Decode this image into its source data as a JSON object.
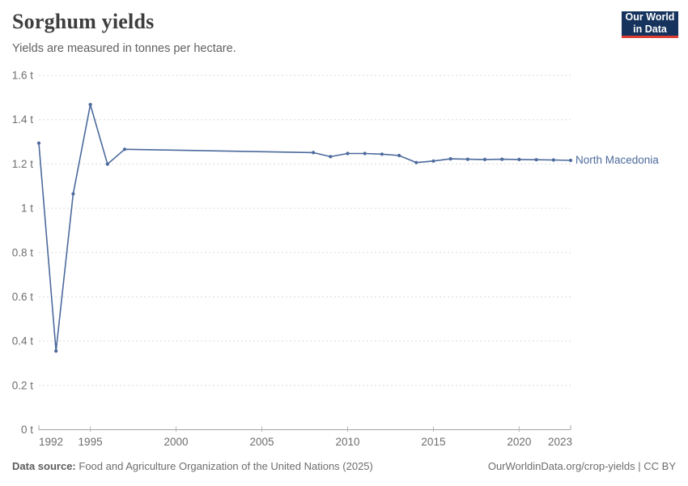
{
  "header": {
    "title": "Sorghum yields",
    "subtitle": "Yields are measured in tonnes per hectare.",
    "logo": {
      "line1": "Our World",
      "line2": "in Data",
      "bg_color": "#15335d",
      "accent_color": "#dc3e32"
    }
  },
  "chart_data": {
    "type": "line",
    "title": "Sorghum yields",
    "ylabel": "tonnes per hectare",
    "unit": "t",
    "xlim": [
      1992,
      2023
    ],
    "ylim": [
      0,
      1.6
    ],
    "grid": "horizontal-dashed",
    "legend_position": "end-of-line-label",
    "x_ticks": [
      1992,
      1995,
      2000,
      2005,
      2010,
      2015,
      2020,
      2023
    ],
    "y_ticks": [
      {
        "v": 0,
        "label": "0 t"
      },
      {
        "v": 0.2,
        "label": "0.2 t"
      },
      {
        "v": 0.4,
        "label": "0.4 t"
      },
      {
        "v": 0.6,
        "label": "0.6 t"
      },
      {
        "v": 0.8,
        "label": "0.8 t"
      },
      {
        "v": 1,
        "label": "1 t"
      },
      {
        "v": 1.2,
        "label": "1.2 t"
      },
      {
        "v": 1.4,
        "label": "1.4 t"
      },
      {
        "v": 1.6,
        "label": "1.6 t"
      }
    ],
    "series": [
      {
        "name": "North Macedonia",
        "color": "#4c6a9c",
        "points": [
          [
            1992,
            1.294
          ],
          [
            1993,
            0.355
          ],
          [
            1994,
            1.065
          ],
          [
            1995,
            1.468
          ],
          [
            1996,
            1.199
          ],
          [
            1997,
            1.266
          ],
          [
            2008,
            1.251
          ],
          [
            2009,
            1.233
          ],
          [
            2010,
            1.247
          ],
          [
            2011,
            1.247
          ],
          [
            2012,
            1.244
          ],
          [
            2013,
            1.238
          ],
          [
            2014,
            1.206
          ],
          [
            2015,
            1.213
          ],
          [
            2016,
            1.223
          ],
          [
            2017,
            1.221
          ],
          [
            2018,
            1.22
          ],
          [
            2019,
            1.221
          ],
          [
            2020,
            1.22
          ],
          [
            2021,
            1.219
          ],
          [
            2022,
            1.218
          ],
          [
            2023,
            1.216
          ]
        ]
      }
    ]
  },
  "footer": {
    "source_label": "Data source:",
    "source_text": "Food and Agriculture Organization of the United Nations (2025)",
    "link_text": "OurWorldinData.org/crop-yields | CC BY"
  }
}
